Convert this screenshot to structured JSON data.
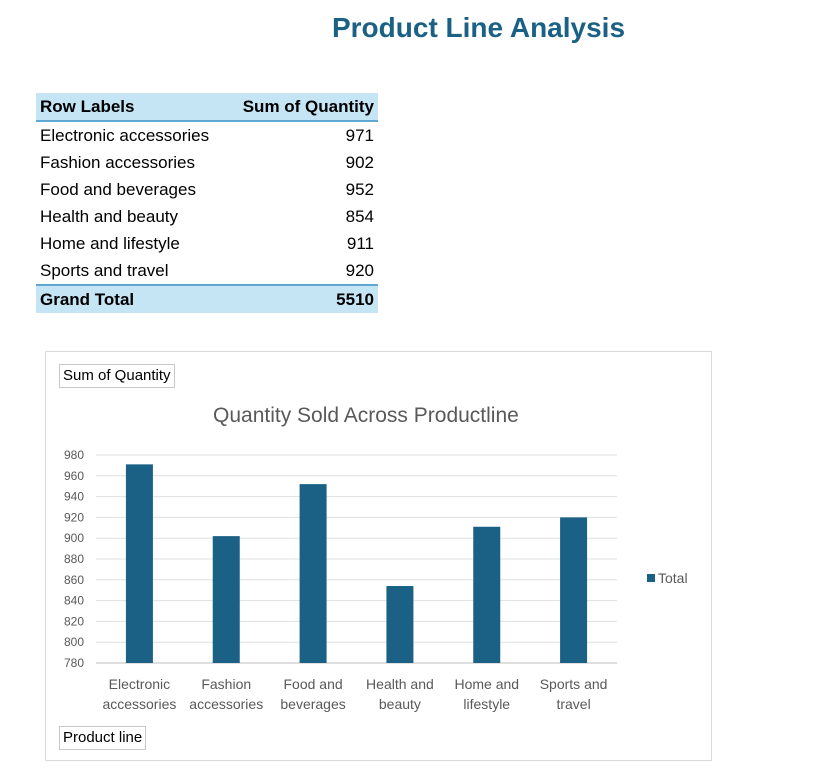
{
  "page": {
    "title": "Product Line Analysis"
  },
  "pivot": {
    "header": {
      "row_labels": "Row Labels",
      "sum_of_quantity": "Sum of Quantity"
    },
    "rows": [
      {
        "label": "Electronic accessories",
        "value": "971"
      },
      {
        "label": "Fashion accessories",
        "value": "902"
      },
      {
        "label": "Food and beverages",
        "value": "952"
      },
      {
        "label": "Health and beauty",
        "value": "854"
      },
      {
        "label": "Home and lifestyle",
        "value": "911"
      },
      {
        "label": "Sports and travel",
        "value": "920"
      }
    ],
    "grand_total": {
      "label": "Grand Total",
      "value": "5510"
    }
  },
  "chart_fields": {
    "value_field": "Sum of Quantity",
    "axis_field": "Product line"
  },
  "chart_data": {
    "type": "bar",
    "title": "Quantity Sold Across Productline",
    "categories": [
      [
        "Electronic",
        "accessories"
      ],
      [
        "Fashion",
        "accessories"
      ],
      [
        "Food and",
        "beverages"
      ],
      [
        "Health and",
        "beauty"
      ],
      [
        "Home and",
        "lifestyle"
      ],
      [
        "Sports and",
        "travel"
      ]
    ],
    "series": [
      {
        "name": "Total",
        "values": [
          971,
          902,
          952,
          854,
          911,
          920
        ],
        "color": "#1b6186"
      }
    ],
    "ylim": [
      780,
      980
    ],
    "ytick_step": 20,
    "grid": true,
    "legend": "right"
  }
}
